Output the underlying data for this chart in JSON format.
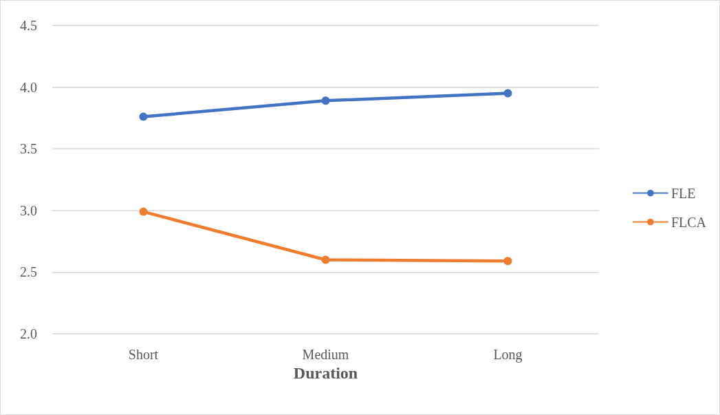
{
  "chart_data": {
    "type": "line",
    "xlabel": "Duration",
    "categories": [
      "Short",
      "Medium",
      "Long"
    ],
    "series": [
      {
        "name": "FLE",
        "color": "#4472c4",
        "values": [
          3.76,
          3.89,
          3.95
        ]
      },
      {
        "name": "FLCA",
        "color": "#ed7d31",
        "values": [
          2.99,
          2.6,
          2.59
        ]
      }
    ],
    "ylim": [
      2.0,
      4.5
    ],
    "yticks": [
      {
        "value": 2,
        "label": "2.0"
      },
      {
        "value": 2.5,
        "label": "2.5"
      },
      {
        "value": 3,
        "label": "3.0"
      },
      {
        "value": 3.5,
        "label": "3.5"
      },
      {
        "value": 4,
        "label": "4.0"
      },
      {
        "value": 4.5,
        "label": "4.5"
      }
    ],
    "grid": "y",
    "legend": "right",
    "marker": "circle",
    "line_style": "solid"
  }
}
